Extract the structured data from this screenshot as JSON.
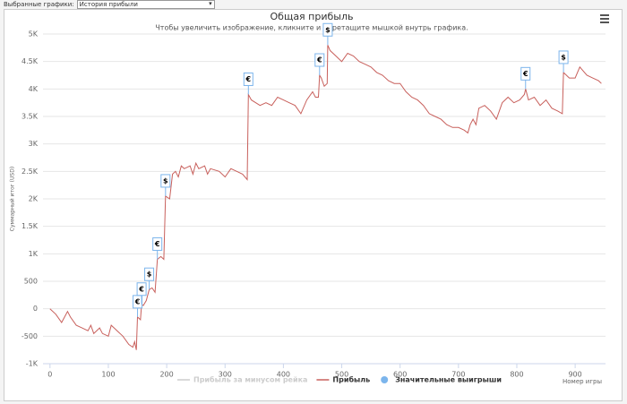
{
  "ui": {
    "selector_label": "Выбранные графики:",
    "selector_value": "История прибыли"
  },
  "chart_data": {
    "type": "line",
    "title": "Общая прибыль",
    "subtitle": "Чтобы увеличить изображение, кликните и перетащите мышкой внутрь графика.",
    "x_label": "Номер игры",
    "y_label": "Суммарный итог (USD)",
    "xlim": [
      -12,
      952
    ],
    "ylim": [
      -1000,
      5000
    ],
    "xticks": [
      0,
      100,
      200,
      300,
      400,
      500,
      600,
      700,
      800,
      900
    ],
    "yticks": [
      {
        "value": -1000,
        "label": "-1K"
      },
      -500,
      0,
      500,
      {
        "value": 1000,
        "label": "1K"
      },
      {
        "value": 1500,
        "label": "1.5K"
      },
      {
        "value": 2000,
        "label": "2K"
      },
      {
        "value": 2500,
        "label": "2.5K"
      },
      {
        "value": 3000,
        "label": "3K"
      },
      {
        "value": 3500,
        "label": "3.5K"
      },
      {
        "value": 4000,
        "label": "4K"
      },
      {
        "value": 4500,
        "label": "4.5K"
      },
      {
        "value": 5000,
        "label": "5K"
      }
    ],
    "grid": true,
    "x": [
      0,
      10,
      20,
      25,
      30,
      35,
      45,
      55,
      65,
      70,
      75,
      85,
      90,
      100,
      105,
      115,
      125,
      135,
      142,
      145,
      148,
      150,
      155,
      157,
      160,
      165,
      170,
      175,
      180,
      184,
      190,
      195,
      198,
      205,
      210,
      215,
      220,
      225,
      230,
      240,
      245,
      250,
      255,
      265,
      270,
      275,
      290,
      300,
      310,
      320,
      330,
      338,
      340,
      345,
      360,
      370,
      380,
      390,
      400,
      410,
      420,
      430,
      440,
      450,
      455,
      460,
      462,
      465,
      470,
      475,
      476,
      480,
      490,
      500,
      510,
      520,
      530,
      540,
      550,
      560,
      570,
      580,
      590,
      600,
      610,
      620,
      630,
      640,
      650,
      660,
      670,
      680,
      690,
      700,
      710,
      716,
      720,
      725,
      730,
      735,
      745,
      755,
      765,
      775,
      785,
      795,
      805,
      813,
      815,
      820,
      830,
      840,
      850,
      860,
      870,
      878,
      880,
      890,
      900,
      908,
      920,
      930,
      940,
      945
    ],
    "series": [
      {
        "name": "Прибыль за минусом рейка",
        "color": "#cccccc",
        "visible": false
      },
      {
        "name": "Прибыль",
        "color": "#c8605c",
        "visible": true,
        "values": [
          0,
          -100,
          -250,
          -150,
          -50,
          -150,
          -300,
          -350,
          -400,
          -300,
          -450,
          -350,
          -450,
          -500,
          -300,
          -400,
          -500,
          -650,
          -700,
          -600,
          -750,
          -150,
          -200,
          80,
          60,
          150,
          350,
          380,
          300,
          900,
          950,
          900,
          2050,
          2000,
          2450,
          2500,
          2400,
          2600,
          2550,
          2600,
          2450,
          2650,
          2550,
          2600,
          2450,
          2550,
          2500,
          2400,
          2550,
          2500,
          2450,
          2350,
          3900,
          3800,
          3700,
          3750,
          3700,
          3850,
          3800,
          3750,
          3700,
          3550,
          3800,
          3950,
          3850,
          3850,
          4250,
          4200,
          4050,
          4100,
          4800,
          4700,
          4600,
          4500,
          4650,
          4600,
          4500,
          4450,
          4400,
          4300,
          4250,
          4150,
          4100,
          4100,
          3950,
          3850,
          3800,
          3700,
          3550,
          3500,
          3450,
          3350,
          3300,
          3300,
          3250,
          3200,
          3350,
          3450,
          3350,
          3650,
          3700,
          3600,
          3450,
          3750,
          3850,
          3750,
          3800,
          3900,
          4000,
          3800,
          3850,
          3700,
          3800,
          3650,
          3600,
          3550,
          4300,
          4200,
          4200,
          4400,
          4250,
          4200,
          4150,
          4100
        ]
      },
      {
        "name": "Значительные выигрыши",
        "color": "#7cb5ec",
        "type": "flags",
        "x": [
          150,
          157,
          170,
          184,
          198,
          340,
          462,
          476,
          815,
          880
        ],
        "values": [
          -150,
          80,
          350,
          900,
          2050,
          3900,
          4250,
          4800,
          4000,
          4300
        ],
        "labels": [
          "€",
          "€",
          "$",
          "€",
          "$",
          "€",
          "€",
          "$",
          "€",
          "$"
        ]
      }
    ]
  }
}
